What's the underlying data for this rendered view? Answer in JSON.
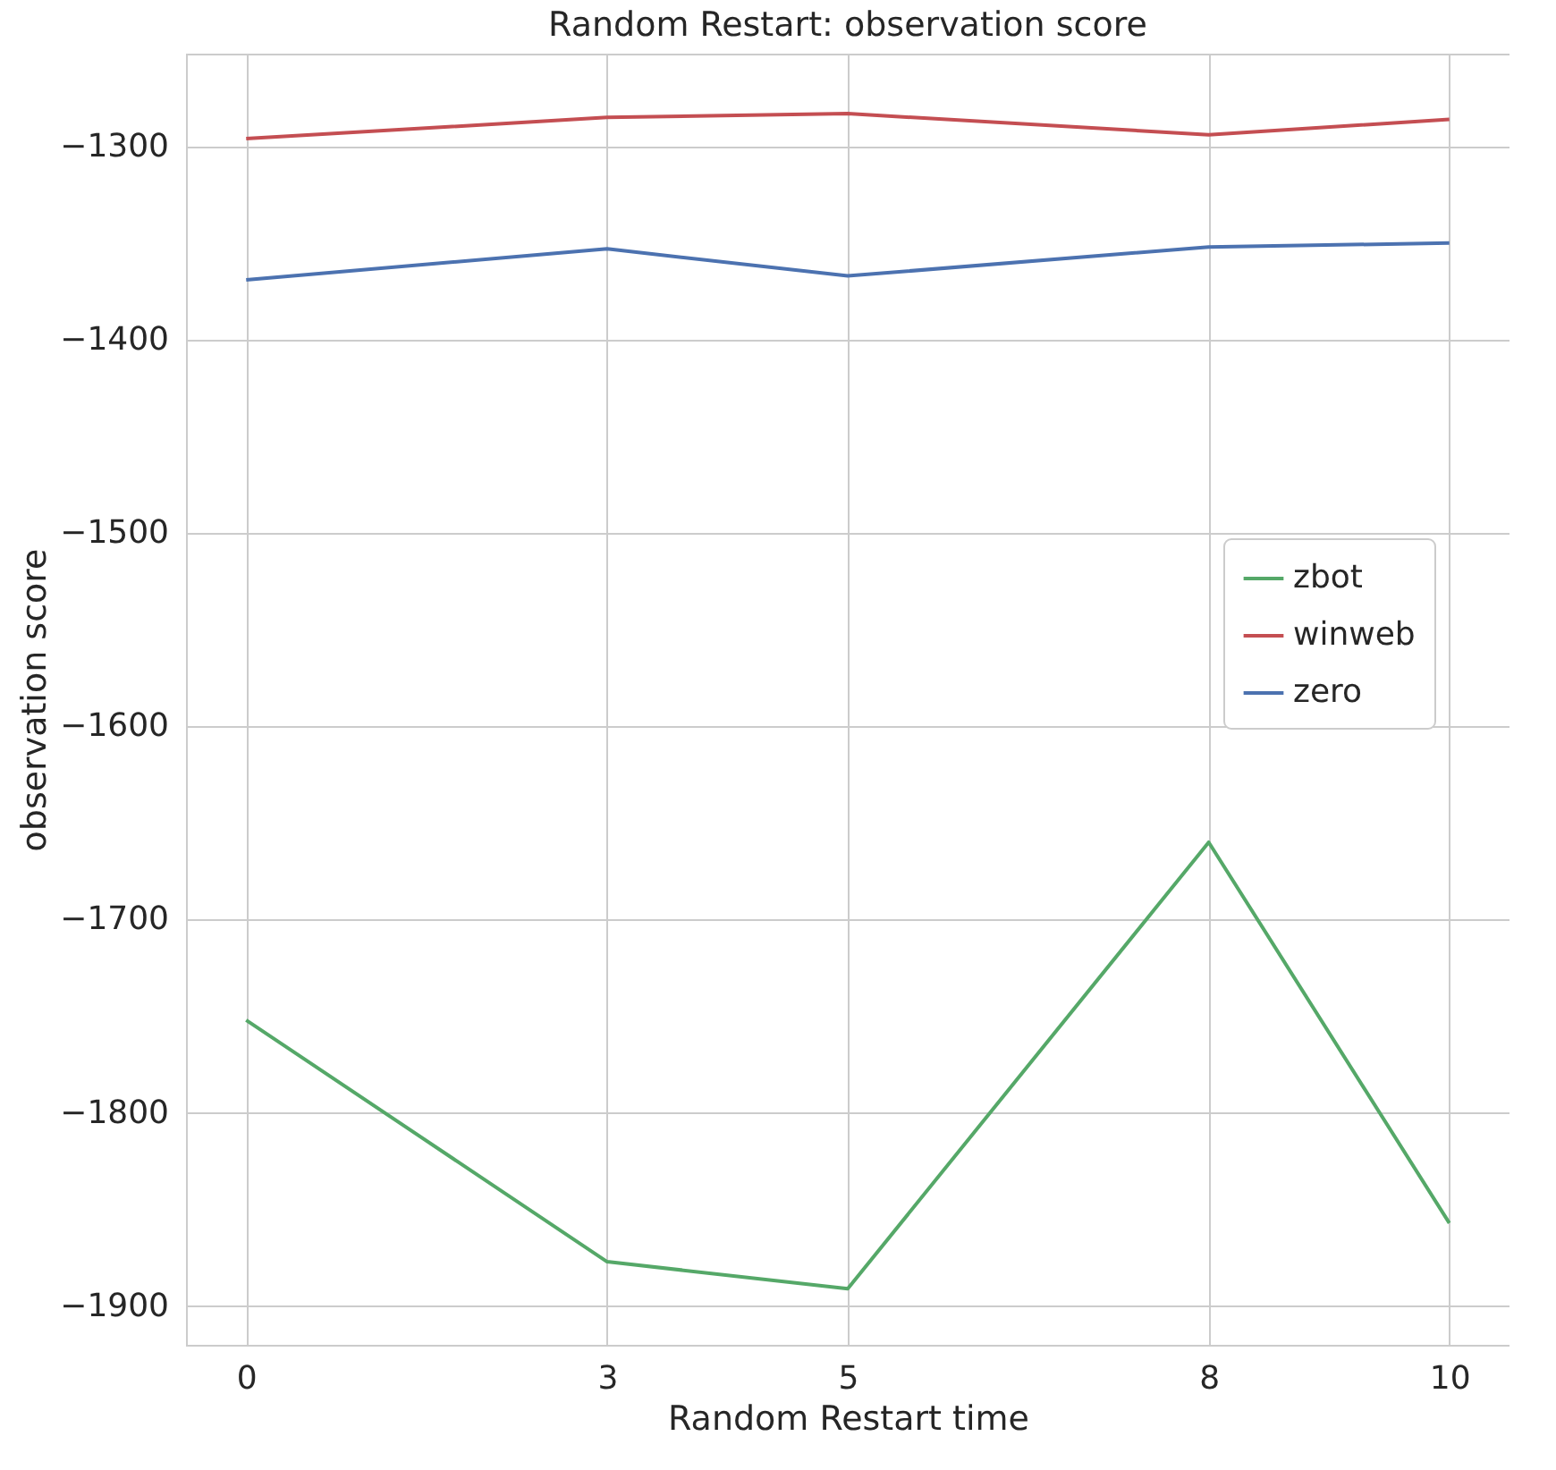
{
  "chart_data": {
    "type": "line",
    "title": "Random Restart: observation score",
    "xlabel": "Random Restart time",
    "ylabel": "observation score",
    "x": [
      0,
      3,
      5,
      8,
      10
    ],
    "series": [
      {
        "name": "zbot",
        "color": "#55a868",
        "values": [
          -1752,
          -1877,
          -1891,
          -1660,
          -1857
        ]
      },
      {
        "name": "winweb",
        "color": "#c44e52",
        "values": [
          -1296,
          -1285,
          -1283,
          -1294,
          -1286
        ]
      },
      {
        "name": "zero",
        "color": "#4c72b0",
        "values": [
          -1369,
          -1353,
          -1367,
          -1352,
          -1350
        ]
      }
    ],
    "xlim": [
      -0.5,
      10.5
    ],
    "xticks": [
      0,
      3,
      5,
      8,
      10
    ],
    "ylim": [
      -1920,
      -1252
    ],
    "yticks": [
      -1900,
      -1800,
      -1700,
      -1600,
      -1500,
      -1400,
      -1300
    ],
    "grid": true,
    "legend": "center right",
    "marker": "none",
    "line_style": "solid"
  }
}
